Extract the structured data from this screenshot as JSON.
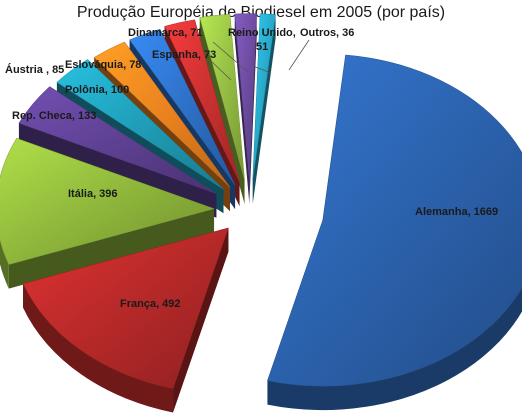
{
  "chart_data": {
    "type": "pie",
    "title": "Produção Européia de Biodiesel em 2005 (por país)",
    "slices": [
      {
        "label": "Alemanha",
        "value": 1669,
        "display": "Alemanha, 1669",
        "color": "#2a5fa8"
      },
      {
        "label": "França",
        "value": 492,
        "display": "França, 492",
        "color": "#b32828"
      },
      {
        "label": "Itália",
        "value": 396,
        "display": "Itália, 396",
        "color": "#8cb33a"
      },
      {
        "label": "Rep. Checa",
        "value": 133,
        "display": "Rep. Checa, 133",
        "color": "#5c3f8f"
      },
      {
        "label": "Polônia",
        "value": 100,
        "display": "Polônia, 100",
        "color": "#1f9ab4"
      },
      {
        "label": "Áustria",
        "value": 85,
        "display": "Áustria , 85",
        "color": "#e8801e"
      },
      {
        "label": "Eslováquia",
        "value": 78,
        "display": "Eslováquia, 78",
        "color": "#2d6fc4"
      },
      {
        "label": "Espanha",
        "value": 73,
        "display": "Espanha, 73",
        "color": "#c73030"
      },
      {
        "label": "Dinamarca",
        "value": 71,
        "display": "Dinamarca, 71",
        "color": "#92ba42"
      },
      {
        "label": "Reino Unido",
        "value": 51,
        "display": [
          "Reino Unido,",
          "51"
        ],
        "color": "#6a4a9c"
      },
      {
        "label": "Outros",
        "value": 36,
        "display": "Outros, 36",
        "color": "#26a3c2"
      }
    ]
  }
}
